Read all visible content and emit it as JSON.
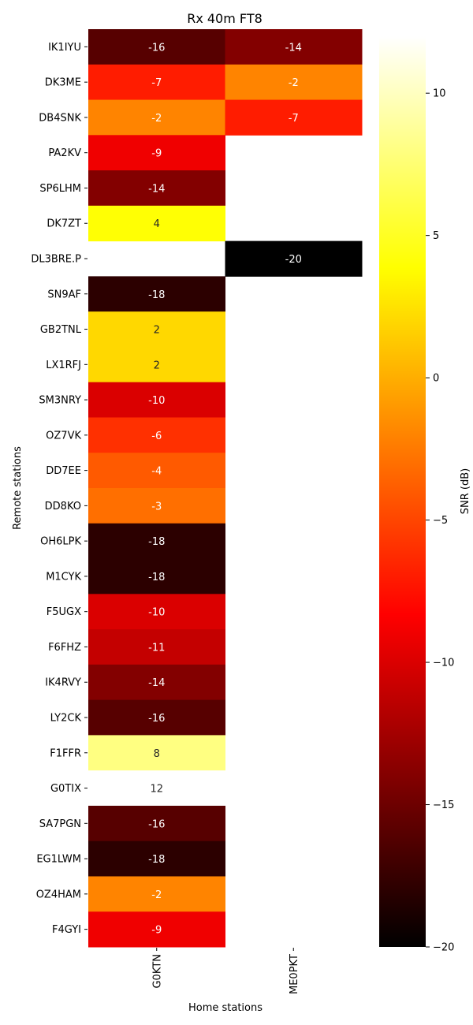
{
  "chart_data": {
    "type": "heatmap",
    "title": "Rx 40m FT8",
    "xlabel": "Home stations",
    "ylabel": "Remote stations",
    "x_categories": [
      "G0KTN",
      "ME0PKT"
    ],
    "y_categories": [
      "IK1IYU",
      "DK3ME",
      "DB4SNK",
      "PA2KV",
      "SP6LHM",
      "DK7ZT",
      "DL3BRE.P",
      "SN9AF",
      "GB2TNL",
      "LX1RFJ",
      "SM3NRY",
      "OZ7VK",
      "DD7EE",
      "DD8KO",
      "OH6LPK",
      "M1CYK",
      "F5UGX",
      "F6FHZ",
      "IK4RVY",
      "LY2CK",
      "F1FFR",
      "G0TIX",
      "SA7PGN",
      "EG1LWM",
      "OZ4HAM",
      "F4GYI"
    ],
    "values": [
      [
        -16,
        -14
      ],
      [
        -7,
        -2
      ],
      [
        -2,
        -7
      ],
      [
        -9,
        null
      ],
      [
        -14,
        null
      ],
      [
        4,
        null
      ],
      [
        null,
        -20
      ],
      [
        -18,
        null
      ],
      [
        2,
        null
      ],
      [
        2,
        null
      ],
      [
        -10,
        null
      ],
      [
        -6,
        null
      ],
      [
        -4,
        null
      ],
      [
        -3,
        null
      ],
      [
        -18,
        null
      ],
      [
        -18,
        null
      ],
      [
        -10,
        null
      ],
      [
        -11,
        null
      ],
      [
        -14,
        null
      ],
      [
        -16,
        null
      ],
      [
        8,
        null
      ],
      [
        12,
        null
      ],
      [
        -16,
        null
      ],
      [
        -18,
        null
      ],
      [
        -2,
        null
      ],
      [
        -9,
        null
      ]
    ],
    "value_labels": [
      [
        "-16",
        "-14"
      ],
      [
        "-7",
        "-2"
      ],
      [
        "-2",
        "-7"
      ],
      [
        "-9",
        ""
      ],
      [
        "-14",
        ""
      ],
      [
        "4",
        ""
      ],
      [
        "",
        "-20"
      ],
      [
        "-18",
        ""
      ],
      [
        "2",
        ""
      ],
      [
        "2",
        ""
      ],
      [
        "-10",
        ""
      ],
      [
        "-6",
        ""
      ],
      [
        "-4",
        ""
      ],
      [
        "-3",
        ""
      ],
      [
        "-18",
        ""
      ],
      [
        "-18",
        ""
      ],
      [
        "-10",
        ""
      ],
      [
        "-11",
        ""
      ],
      [
        "-14",
        ""
      ],
      [
        "-16",
        ""
      ],
      [
        "8",
        ""
      ],
      [
        "12",
        ""
      ],
      [
        "-16",
        ""
      ],
      [
        "-18",
        ""
      ],
      [
        "-2",
        ""
      ],
      [
        "-9",
        ""
      ]
    ],
    "colorscale": "hot",
    "vmin": -20,
    "vmax": 12,
    "colorbar": {
      "label": "SNR (dB)",
      "ticks": [
        10,
        5,
        0,
        -5,
        -10,
        -15,
        -20
      ],
      "tick_labels": [
        "10",
        "5",
        "0",
        "−5",
        "−10",
        "−15",
        "−20"
      ]
    },
    "grid": false,
    "legend": "colorbar-right"
  }
}
